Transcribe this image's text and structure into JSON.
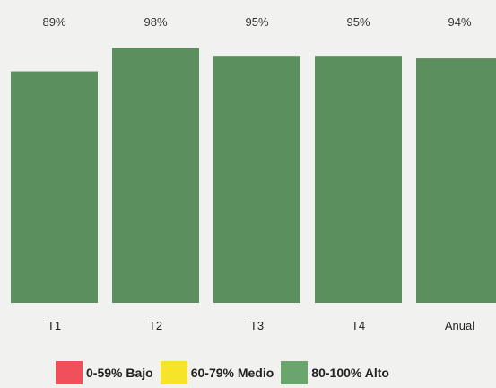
{
  "chart_data": {
    "type": "bar",
    "categories": [
      "T1",
      "T2",
      "T3",
      "T4",
      "Anual"
    ],
    "values": [
      89,
      98,
      95,
      95,
      94
    ],
    "data_labels": [
      "89%",
      "98%",
      "95%",
      "95%",
      "94%"
    ],
    "ylim": [
      0,
      100
    ],
    "bar_color": "#5c8f5e",
    "grid": false,
    "legend_position": "bottom"
  },
  "legend": {
    "items": [
      {
        "label": "0-59% Bajo",
        "color": "#f0505a"
      },
      {
        "label": "60-79% Medio",
        "color": "#f5e42a"
      },
      {
        "label": "80-100% Alto",
        "color": "#6aa56e"
      }
    ]
  }
}
